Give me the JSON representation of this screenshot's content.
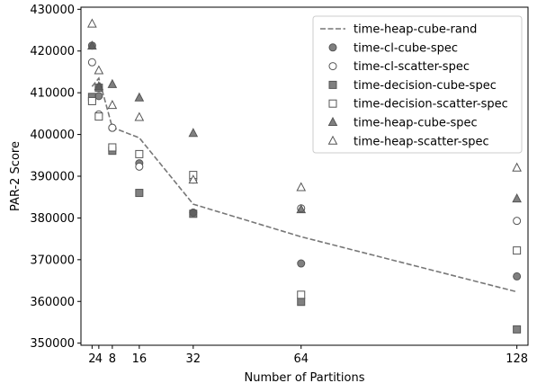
{
  "chart_data": {
    "type": "scatter",
    "xlabel": "Number of Partitions",
    "ylabel": "PAR-2 Score",
    "xlim": [
      -1.3,
      131.3
    ],
    "ylim": [
      349500,
      430500
    ],
    "xticks": [
      2,
      4,
      8,
      16,
      32,
      64,
      128
    ],
    "xtick_labels": [
      "2",
      "4",
      "8",
      "16",
      "32",
      "64",
      "128"
    ],
    "yticks": [
      350000,
      360000,
      370000,
      380000,
      390000,
      400000,
      410000,
      420000,
      430000
    ],
    "ytick_labels": [
      "350000",
      "360000",
      "370000",
      "380000",
      "390000",
      "400000",
      "410000",
      "420000",
      "430000"
    ],
    "grid": false,
    "legend_position": "top-right",
    "x": [
      2,
      4,
      8,
      16,
      32,
      64,
      128
    ],
    "series": [
      {
        "name": "time-heap-cube-rand",
        "kind": "line",
        "marker": "none",
        "color": "#777777",
        "values": [
          411500,
          413500,
          401700,
          399200,
          383300,
          375500,
          362300
        ]
      },
      {
        "name": "time-cl-cube-spec",
        "kind": "marker",
        "marker": "circle",
        "filled": true,
        "color": "#555555",
        "values": [
          421300,
          409200,
          401600,
          393100,
          381300,
          369100,
          366000
        ]
      },
      {
        "name": "time-cl-scatter-spec",
        "kind": "marker",
        "marker": "circle",
        "filled": false,
        "color": "#555555",
        "values": [
          417300,
          404800,
          401600,
          392300,
          389200,
          382300,
          379300
        ]
      },
      {
        "name": "time-decision-cube-spec",
        "kind": "marker",
        "marker": "square",
        "filled": true,
        "color": "#555555",
        "values": [
          409000,
          411200,
          396100,
          386000,
          381000,
          359900,
          353300
        ]
      },
      {
        "name": "time-decision-scatter-spec",
        "kind": "marker",
        "marker": "square",
        "filled": false,
        "color": "#555555",
        "values": [
          408000,
          404300,
          396900,
          395300,
          390300,
          361600,
          372200
        ]
      },
      {
        "name": "time-heap-cube-spec",
        "kind": "marker",
        "marker": "triangle",
        "filled": true,
        "color": "#555555",
        "values": [
          421200,
          411500,
          412000,
          408800,
          400300,
          382000,
          384600
        ]
      },
      {
        "name": "time-heap-scatter-spec",
        "kind": "marker",
        "marker": "triangle",
        "filled": false,
        "color": "#555555",
        "values": [
          426500,
          415300,
          407000,
          404100,
          389100,
          387300,
          392000
        ]
      }
    ]
  }
}
